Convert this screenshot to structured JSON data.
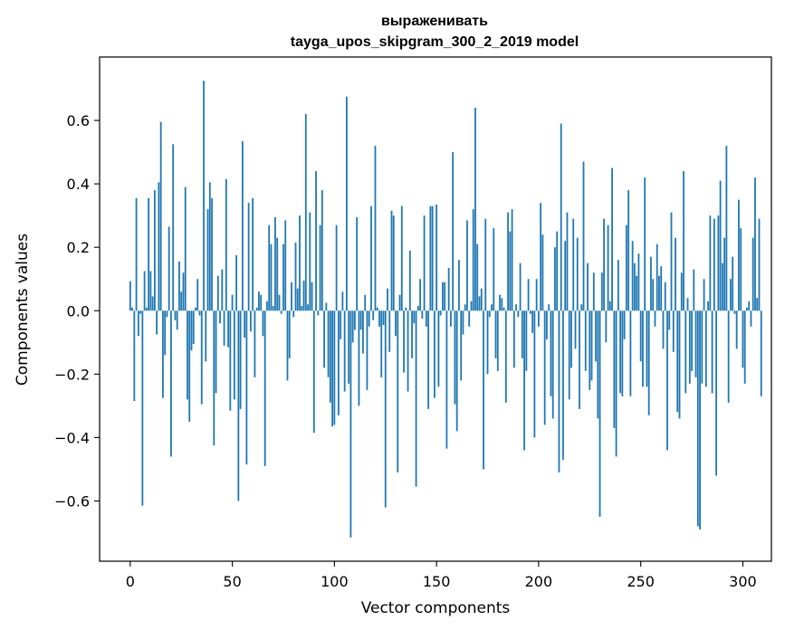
{
  "chart_data": {
    "type": "bar",
    "title": "выраженивать",
    "subtitle": "tayga_upos_skipgram_300_2_2019 model",
    "xlabel": "Vector components",
    "ylabel": "Components values",
    "xlim": [
      -15,
      314
    ],
    "ylim": [
      -0.79,
      0.8
    ],
    "xticks": [
      0,
      50,
      100,
      150,
      200,
      250,
      300
    ],
    "yticks": [
      0.6,
      0.4,
      0.2,
      0.0,
      -0.2,
      -0.4,
      -0.6
    ],
    "xtick_labels": [
      "0",
      "50",
      "100",
      "150",
      "200",
      "250",
      "300"
    ],
    "ytick_labels": [
      "0.6",
      "0.4",
      "0.2",
      "0.0",
      "−0.2",
      "−0.4",
      "−0.6"
    ],
    "grid": false,
    "bar_color": "#1f77b4",
    "values": [
      0.093,
      0.01,
      -0.285,
      0.355,
      -0.08,
      -0.01,
      -0.615,
      0.125,
      0.01,
      0.355,
      0.125,
      0.045,
      0.38,
      -0.075,
      0.405,
      0.595,
      -0.275,
      -0.14,
      -0.02,
      0.265,
      -0.46,
      0.525,
      -0.03,
      -0.06,
      0.155,
      0.06,
      0.12,
      0.39,
      -0.28,
      -0.35,
      -0.125,
      -0.105,
      0.01,
      0.1,
      -0.015,
      -0.295,
      0.725,
      -0.16,
      0.32,
      0.405,
      0.355,
      -0.425,
      -0.26,
      0.11,
      -0.04,
      0.13,
      -0.11,
      0.415,
      -0.115,
      -0.315,
      0.05,
      -0.28,
      0.175,
      -0.6,
      -0.31,
      0.535,
      -0.085,
      -0.485,
      0.34,
      -0.065,
      0.355,
      -0.21,
      0.01,
      0.06,
      0.05,
      -0.08,
      -0.49,
      0.03,
      0.27,
      0.21,
      0.015,
      0.295,
      0.23,
      0.05,
      -0.01,
      0.21,
      0.285,
      -0.22,
      -0.15,
      0.09,
      -0.02,
      0.215,
      0.07,
      0.3,
      0.015,
      0.095,
      0.62,
      0.02,
      0.31,
      0.09,
      -0.385,
      0.44,
      -0.015,
      0.27,
      0.38,
      -0.18,
      0.025,
      -0.21,
      -0.29,
      -0.365,
      -0.36,
      0.27,
      -0.33,
      -0.09,
      0.06,
      -0.255,
      0.675,
      -0.23,
      -0.715,
      -0.1,
      -0.06,
      0.295,
      -0.3,
      -0.06,
      -0.135,
      0.05,
      -0.25,
      -0.05,
      0.33,
      -0.03,
      0.52,
      0.01,
      -0.05,
      -0.21,
      -0.045,
      -0.62,
      0.07,
      -0.13,
      0.315,
      0.3,
      -0.08,
      -0.51,
      0.05,
      0.33,
      -0.195,
      0.01,
      -0.255,
      0.19,
      -0.15,
      -0.04,
      -0.555,
      0.015,
      0.1,
      -0.025,
      0.3,
      -0.05,
      -0.31,
      0.33,
      0.33,
      -0.275,
      0.335,
      -0.24,
      -0.015,
      0.09,
      0.09,
      -0.435,
      0.135,
      -0.05,
      0.5,
      -0.295,
      -0.38,
      0.16,
      -0.22,
      -0.075,
      0.02,
      0.285,
      -0.05,
      0.03,
      0.32,
      0.64,
      0.21,
      0.045,
      0.07,
      -0.5,
      0.29,
      -0.2,
      -0.02,
      0.02,
      0.26,
      -0.15,
      -0.19,
      0.05,
      0.04,
      0.01,
      -0.29,
      0.31,
      0.25,
      0.32,
      -0.18,
      0.02,
      -0.02,
      0.15,
      -0.15,
      -0.44,
      -0.19,
      0.1,
      -0.01,
      -0.07,
      -0.4,
      0.1,
      -0.05,
      0.34,
      0.24,
      -0.36,
      -0.09,
      0.02,
      -0.27,
      -0.34,
      0.2,
      0.25,
      -0.51,
      0.59,
      -0.47,
      0.22,
      0.31,
      -0.28,
      -0.18,
      0.29,
      -0.12,
      0.23,
      -0.31,
      0.02,
      0.47,
      -0.19,
      0.15,
      -0.25,
      -0.22,
      0.12,
      -0.16,
      -0.34,
      -0.65,
      0.12,
      0.29,
      -0.1,
      0.27,
      0.03,
      0.45,
      -0.37,
      -0.46,
      0.16,
      -0.26,
      -0.27,
      -0.09,
      0.27,
      0.38,
      -0.27,
      0.22,
      0.15,
      0.11,
      0.18,
      -0.16,
      -0.24,
      0.42,
      -0.24,
      -0.33,
      0.17,
      0.1,
      -0.05,
      0.21,
      0.11,
      0.14,
      -0.12,
      0.09,
      -0.44,
      -0.06,
      0.31,
      -0.13,
      0.23,
      -0.32,
      -0.34,
      0.12,
      0.44,
      -0.26,
      0.04,
      -0.23,
      -0.19,
      0.13,
      -0.21,
      -0.68,
      -0.69,
      -0.23,
      0.1,
      -0.24,
      0.03,
      0.3,
      -0.26,
      0.29,
      -0.52,
      0.3,
      0.41,
      0.15,
      0.23,
      0.52,
      -0.29,
      0.1,
      0.17,
      -0.01,
      -0.12,
      0.35,
      0.26,
      -0.18,
      -0.23,
      0.01,
      0.03,
      -0.05,
      0.23,
      0.42,
      0.04,
      0.29,
      -0.27
    ]
  }
}
